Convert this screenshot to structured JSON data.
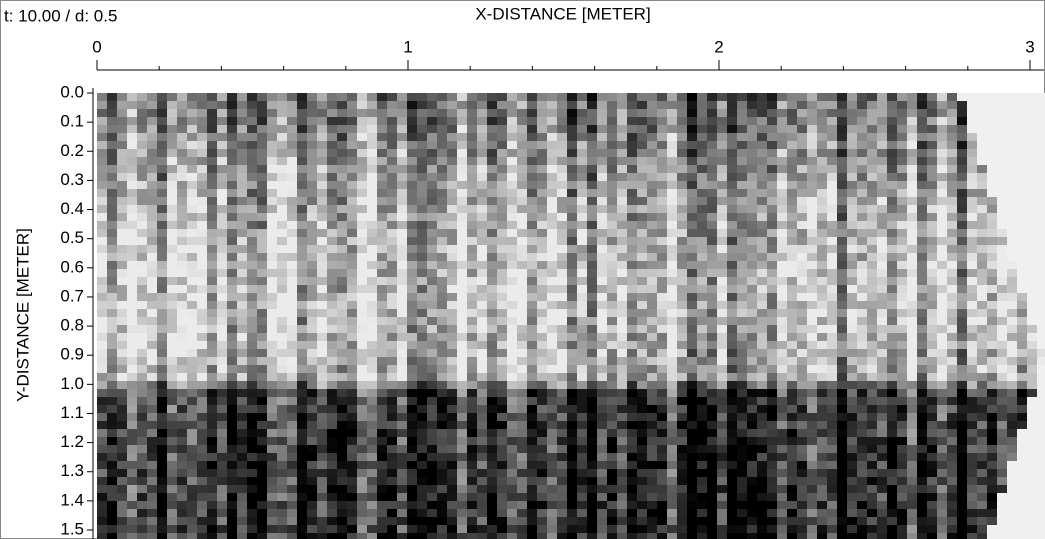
{
  "chart_data": {
    "type": "image",
    "annotation": "t: 10.00 / d: 0.5",
    "title": "X-DISTANCE [METER]",
    "y_label": "Y-DISTANCE [METER]",
    "xlim": [
      0,
      3
    ],
    "xticks": [
      0,
      1,
      2,
      3
    ],
    "ylim": [
      0,
      1.5
    ],
    "yticks": [
      {
        "value": 0,
        "label": "0.0"
      },
      0.1,
      0.2,
      0.3,
      0.4,
      0.5,
      0.6,
      0.7,
      0.8,
      0.9,
      {
        "value": 1,
        "label": "1.0"
      },
      1.1,
      1.2,
      1.3,
      1.4,
      1.5
    ]
  }
}
